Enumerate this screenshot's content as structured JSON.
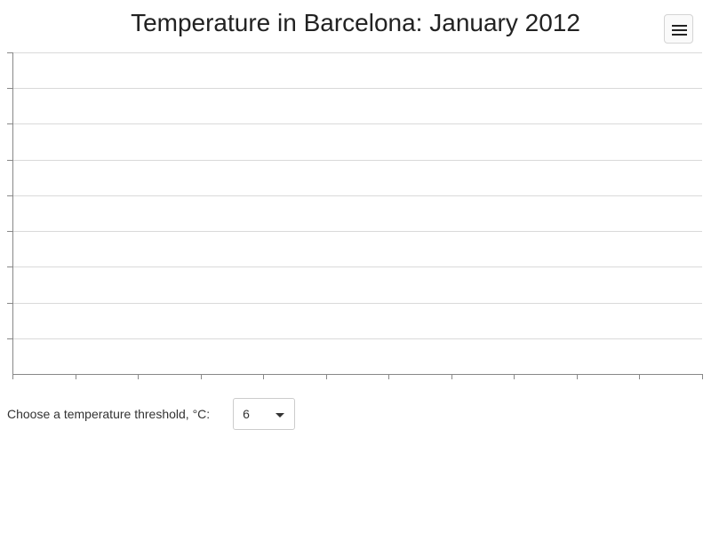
{
  "chart": {
    "title": "Temperature in Barcelona: January 2012"
  },
  "controls": {
    "threshold_label": "Choose a temperature threshold, °C:",
    "threshold_value": "6"
  },
  "icons": {
    "menu": "hamburger-menu-icon",
    "dropdown": "caret-down-icon"
  },
  "colors": {
    "gridline": "#d9d9d9",
    "axis": "#888888"
  },
  "chart_data": {
    "type": "line",
    "title": "Temperature in Barcelona: January 2012",
    "xlabel": "",
    "ylabel": "",
    "series": [],
    "grid": true,
    "legend": "none"
  }
}
